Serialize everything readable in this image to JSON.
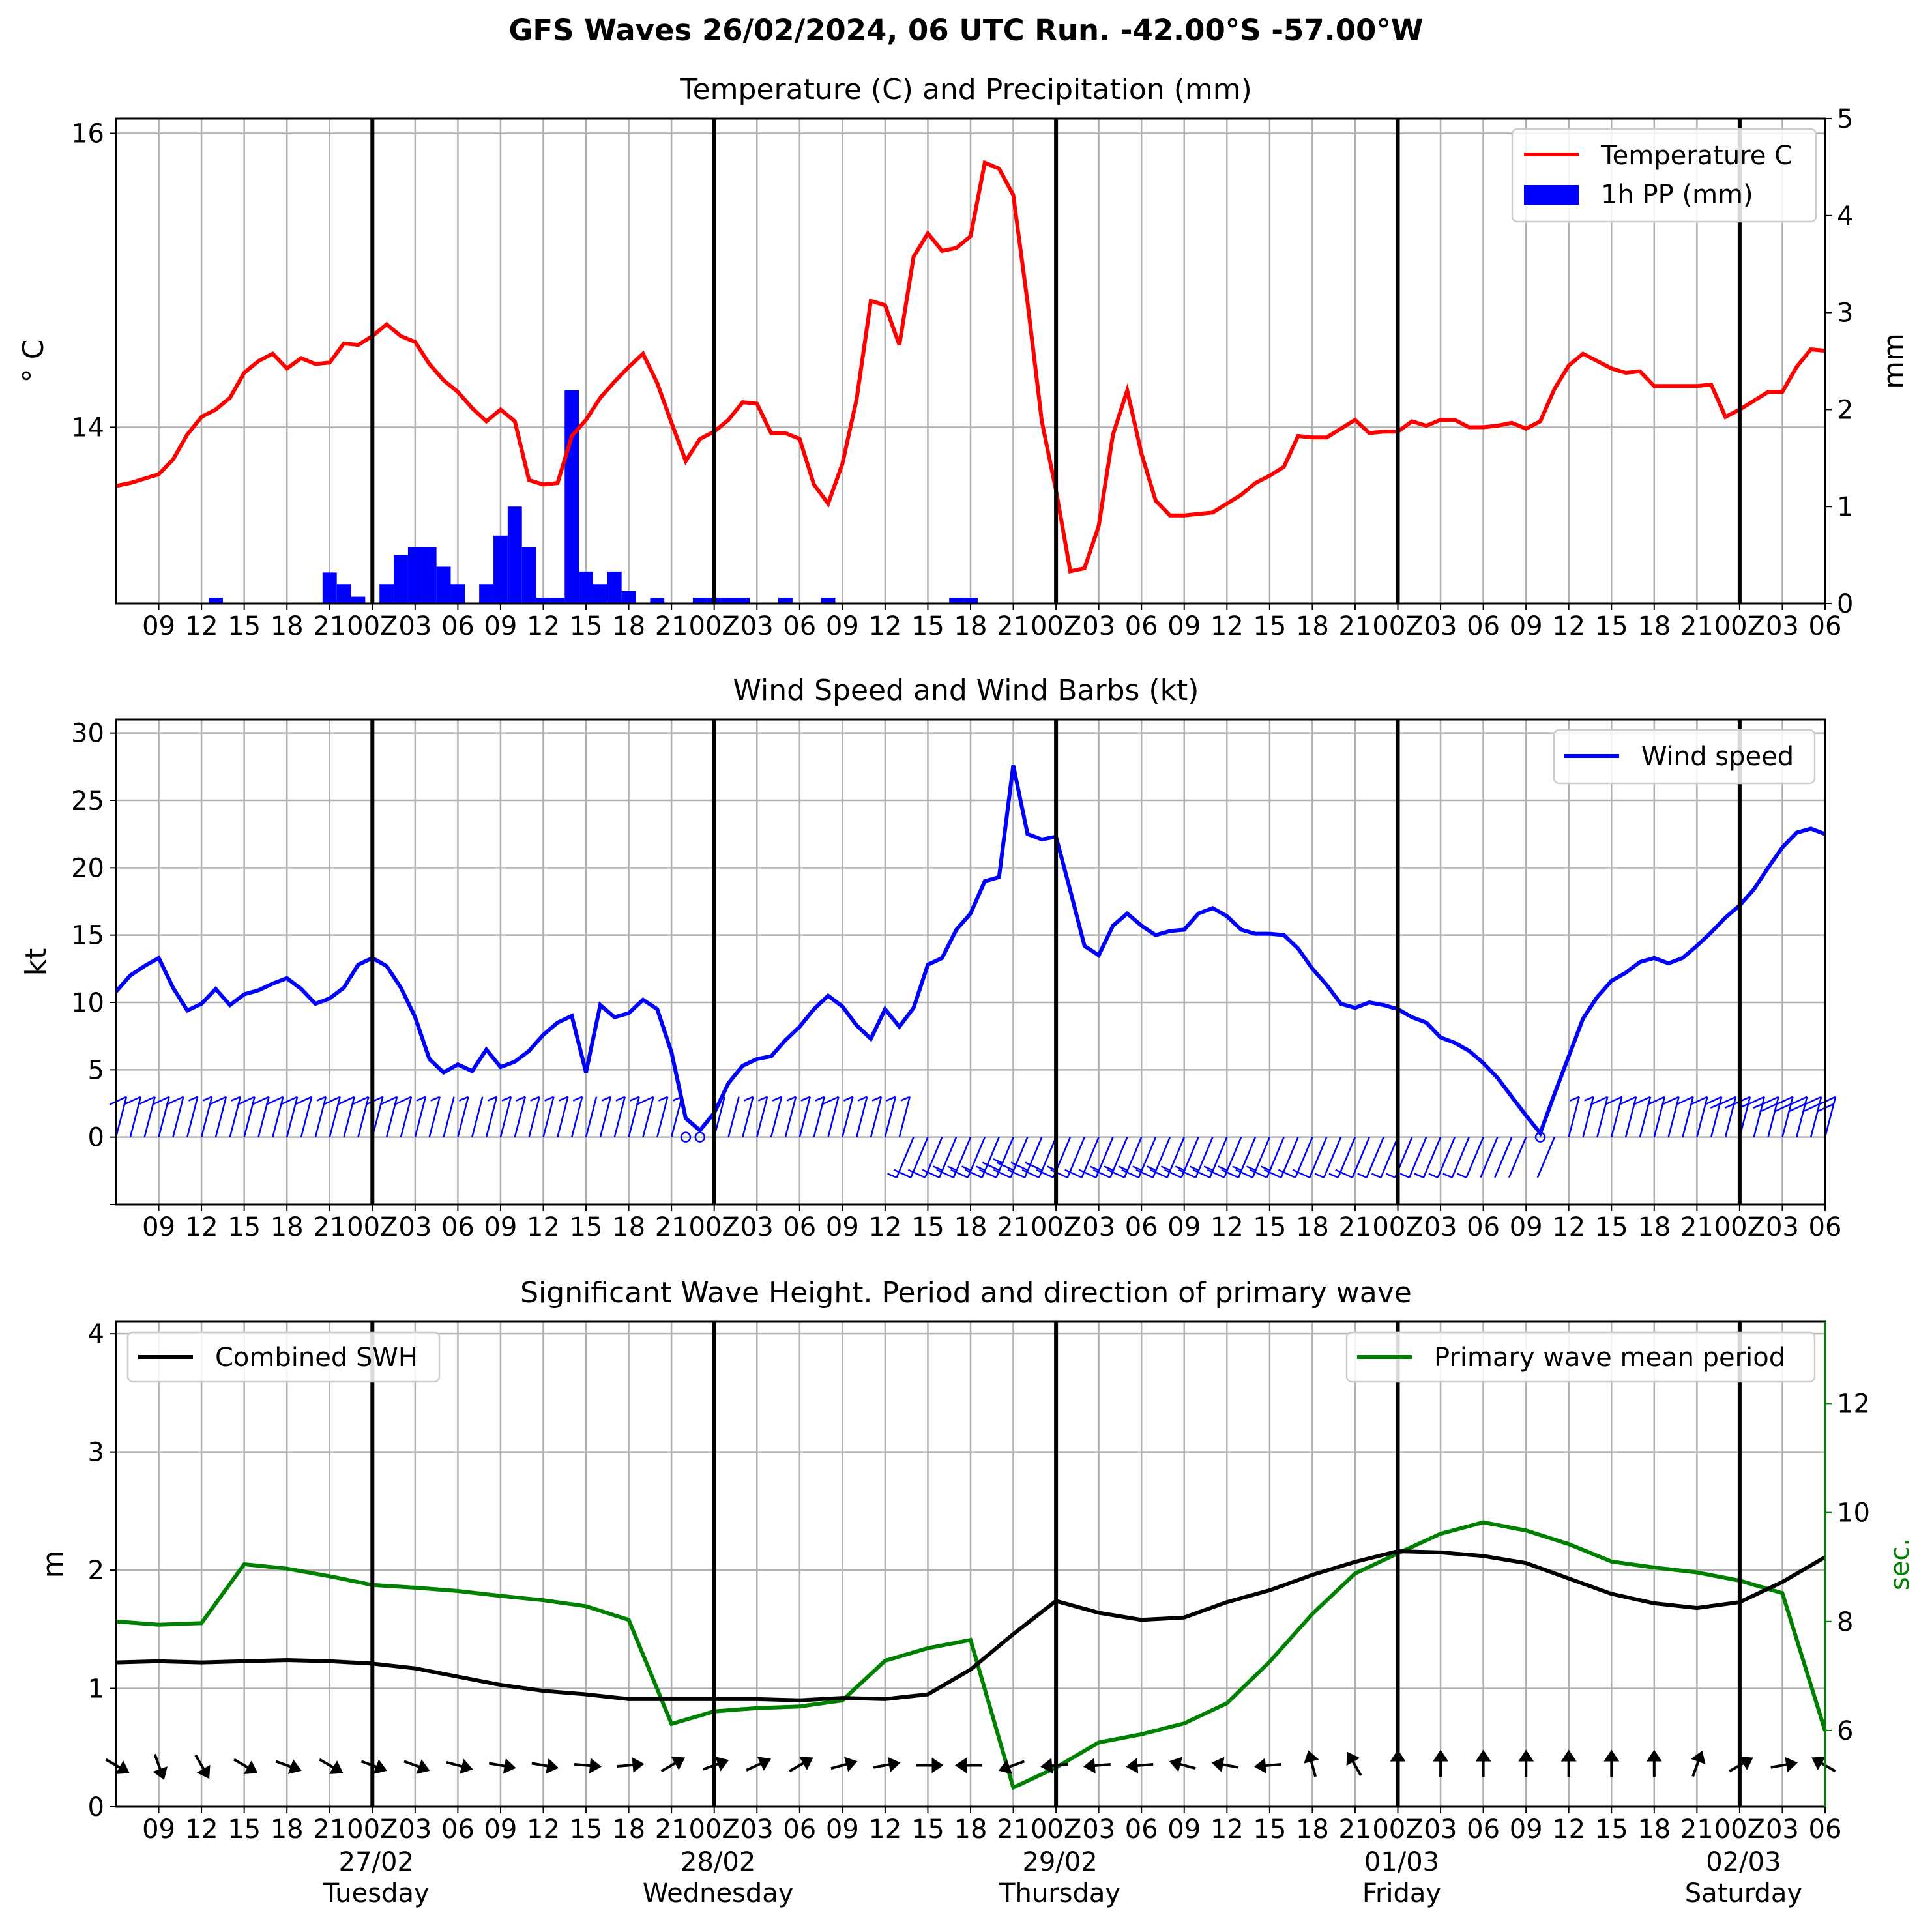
{
  "suptitle": "GFS Waves 26/02/2024, 06 UTC Run. -42.00°S -57.00°W",
  "x_axis": {
    "note_hours_since_run_start": "x values are hours after 26/02 06 UTC; ticks every 3 h from 09 to 06",
    "tick_labels_top": [
      "09",
      "12",
      "15",
      "18",
      "21",
      "00Z",
      "03",
      "06",
      "09",
      "12",
      "15",
      "18",
      "21",
      "00Z",
      "03",
      "06",
      "09",
      "12",
      "15",
      "18",
      "21",
      "00Z",
      "03",
      "06",
      "09",
      "12",
      "15",
      "18",
      "21",
      "00Z",
      "03",
      "06",
      "09",
      "12",
      "15",
      "18",
      "21",
      "00Z",
      "03",
      "06"
    ],
    "day_labels": [
      {
        "date": "27/02",
        "day": "Tuesday"
      },
      {
        "date": "28/02",
        "day": "Wednesday"
      },
      {
        "date": "29/02",
        "day": "Thursday"
      },
      {
        "date": "01/03",
        "day": "Friday"
      },
      {
        "date": "02/03",
        "day": "Saturday"
      }
    ]
  },
  "chart_data": [
    {
      "type": "line",
      "title": "Temperature (C) and Precipitation (mm)",
      "ylabel": "$^\\circ$C",
      "ylabel_display": "° C",
      "y2label": "mm",
      "ylim": [
        12.8,
        16.1
      ],
      "y2lim": [
        0,
        5
      ],
      "yticks": [
        "14",
        "16"
      ],
      "y2ticks": [
        "0",
        "1",
        "2",
        "3",
        "4",
        "5"
      ],
      "legend": {
        "position": "top-right",
        "entries": [
          "Temperature C",
          "1h PP (mm)"
        ]
      },
      "colors": {
        "temperature": "#ff0000",
        "precip": "#0000ff"
      },
      "series": [
        {
          "name": "Temperature C",
          "x": [
            0,
            1,
            2,
            3,
            4,
            5,
            6,
            7,
            8,
            9,
            10,
            11,
            12,
            13,
            14,
            15,
            16,
            17,
            18,
            19,
            20,
            21,
            22,
            23,
            24,
            25,
            26,
            27,
            28,
            29,
            30,
            31,
            32,
            33,
            34,
            35,
            36,
            37,
            38,
            39,
            40,
            41,
            42,
            43,
            44,
            45,
            46,
            47,
            48,
            49,
            50,
            51,
            52,
            53,
            54,
            55,
            56,
            57,
            58,
            59,
            60,
            61,
            62,
            63,
            64,
            65,
            66,
            67,
            68,
            69,
            70,
            71,
            72,
            73,
            74,
            75,
            76,
            77,
            78,
            79,
            80,
            81,
            82,
            83,
            84,
            85,
            86,
            87,
            88,
            89,
            90,
            91,
            92,
            93,
            94,
            95,
            96,
            97,
            98,
            99,
            100,
            101,
            102,
            103,
            104,
            105,
            106,
            107,
            108,
            109,
            110,
            111,
            112,
            113,
            114,
            115,
            116,
            117,
            118,
            119,
            120
          ],
          "values": [
            13.6,
            13.62,
            13.65,
            13.68,
            13.78,
            13.95,
            14.07,
            14.12,
            14.2,
            14.37,
            14.45,
            14.5,
            14.4,
            14.47,
            14.43,
            14.44,
            14.57,
            14.56,
            14.62,
            14.7,
            14.62,
            14.58,
            14.43,
            14.32,
            14.24,
            14.13,
            14.04,
            14.12,
            14.04,
            13.64,
            13.61,
            13.62,
            13.94,
            14.05,
            14.2,
            14.31,
            14.41,
            14.5,
            14.3,
            14.03,
            13.77,
            13.92,
            13.97,
            14.05,
            14.17,
            14.16,
            13.96,
            13.96,
            13.92,
            13.61,
            13.48,
            13.75,
            14.19,
            14.86,
            14.83,
            14.56,
            15.16,
            15.32,
            15.2,
            15.22,
            15.3,
            15.8,
            15.76,
            15.58,
            14.85,
            14.04,
            13.57,
            13.02,
            13.04,
            13.33,
            13.95,
            14.25,
            13.82,
            13.5,
            13.4,
            13.4,
            13.41,
            13.42,
            13.48,
            13.54,
            13.62,
            13.67,
            13.73,
            13.94,
            13.93,
            13.93,
            13.99,
            14.05,
            13.96,
            13.97,
            13.97,
            14.04,
            14.01,
            14.05,
            14.05,
            14.0,
            14.0,
            14.01,
            14.03,
            13.99,
            14.04,
            14.26,
            14.42,
            14.5,
            14.45,
            14.4,
            14.37,
            14.38,
            14.28,
            14.28,
            14.28,
            14.28,
            14.29,
            14.07,
            14.12,
            14.18,
            14.24,
            14.24,
            14.41,
            14.53,
            14.52
          ]
        },
        {
          "name": "1h PP (mm)",
          "x": [
            7,
            15,
            16,
            17,
            19,
            20,
            21,
            22,
            23,
            24,
            26,
            27,
            28,
            29,
            30,
            31,
            32,
            33,
            34,
            35,
            36,
            37,
            38,
            39,
            41,
            42,
            43,
            44,
            47,
            50,
            59,
            60
          ],
          "values": [
            0.06,
            0.32,
            0.2,
            0.07,
            0.2,
            0.5,
            0.58,
            0.58,
            0.38,
            0.2,
            0.2,
            0.7,
            1.0,
            0.58,
            0.06,
            0.06,
            2.2,
            0.33,
            0.2,
            0.33,
            0.13,
            0.0,
            0.06,
            0.0,
            0.06,
            0.06,
            0.06,
            0.06,
            0.06,
            0.06,
            0.06,
            0.06
          ]
        }
      ]
    },
    {
      "type": "line",
      "title": "Wind Speed and Wind Barbs (kt)",
      "ylabel": "kt",
      "ylim": [
        -5,
        31
      ],
      "yticks": [
        "0",
        "5",
        "10",
        "15",
        "20",
        "25",
        "30"
      ],
      "legend": {
        "position": "top-right",
        "entries": [
          "Wind speed"
        ]
      },
      "colors": {
        "wind": "#0000ff"
      },
      "series": [
        {
          "name": "Wind speed",
          "x": [
            0,
            1,
            2,
            3,
            4,
            5,
            6,
            7,
            8,
            9,
            10,
            11,
            12,
            13,
            14,
            15,
            16,
            17,
            18,
            19,
            20,
            21,
            22,
            23,
            24,
            25,
            26,
            27,
            28,
            29,
            30,
            31,
            32,
            33,
            34,
            35,
            36,
            37,
            38,
            39,
            40,
            41,
            42,
            43,
            44,
            45,
            46,
            47,
            48,
            49,
            50,
            51,
            52,
            53,
            54,
            55,
            56,
            57,
            58,
            59,
            60,
            61,
            62,
            63,
            64,
            65,
            66,
            67,
            68,
            69,
            70,
            71,
            72,
            73,
            74,
            75,
            76,
            77,
            78,
            79,
            80,
            81,
            82,
            83,
            84,
            85,
            86,
            87,
            88,
            89,
            90,
            91,
            92,
            93,
            94,
            95,
            96,
            97,
            98,
            99,
            100,
            101,
            102,
            103,
            104,
            105,
            106,
            107,
            108,
            109,
            110,
            111,
            112,
            113,
            114,
            115,
            116,
            117,
            118,
            119,
            120
          ],
          "values": [
            10.8,
            12.0,
            12.7,
            13.3,
            11.1,
            9.4,
            9.9,
            11.0,
            9.8,
            10.6,
            10.9,
            11.4,
            11.8,
            11.0,
            9.9,
            10.3,
            11.1,
            12.8,
            13.3,
            12.7,
            11.1,
            8.9,
            5.8,
            4.8,
            5.4,
            4.9,
            6.5,
            5.2,
            5.6,
            6.4,
            7.6,
            8.5,
            9.0,
            4.8,
            9.8,
            8.9,
            9.2,
            10.2,
            9.5,
            6.3,
            1.4,
            0.5,
            1.8,
            4.0,
            5.3,
            5.8,
            6.0,
            7.2,
            8.2,
            9.5,
            10.5,
            9.7,
            8.3,
            7.3,
            9.5,
            8.2,
            9.6,
            12.8,
            13.3,
            15.4,
            16.6,
            19.0,
            19.3,
            27.6,
            22.5,
            22.1,
            22.3,
            18.3,
            14.2,
            13.5,
            15.7,
            16.6,
            15.7,
            15.0,
            15.3,
            15.4,
            16.6,
            17.0,
            16.4,
            15.4,
            15.1,
            15.1,
            15.0,
            14.0,
            12.5,
            11.3,
            9.9,
            9.6,
            10.0,
            9.8,
            9.5,
            8.9,
            8.5,
            7.4,
            7.0,
            6.4,
            5.5,
            4.4,
            3.0,
            1.6,
            0.3,
            3.2,
            6.0,
            8.8,
            10.4,
            11.6,
            12.2,
            13.0,
            13.3,
            12.9,
            13.3,
            14.2,
            15.2,
            16.3,
            17.2,
            18.4,
            20.0,
            21.5,
            22.6,
            22.9,
            22.5
          ]
        }
      ]
    },
    {
      "type": "line",
      "title": "Significant Wave Height. Period and direction of primary wave",
      "ylabel": "m",
      "y2label": "sec.",
      "ylim": [
        0,
        4.1
      ],
      "y2lim": [
        4.6,
        13.5
      ],
      "yticks": [
        "0",
        "1",
        "2",
        "3",
        "4"
      ],
      "y2ticks": [
        "6",
        "8",
        "10",
        "12"
      ],
      "legend_left": {
        "position": "top-left",
        "entries": [
          "Combined SWH"
        ]
      },
      "legend_right": {
        "position": "top-right",
        "entries": [
          "Primary wave mean period"
        ]
      },
      "colors": {
        "swh": "#000000",
        "period": "#008000"
      },
      "series": [
        {
          "name": "Combined SWH",
          "x": [
            0,
            3,
            6,
            9,
            12,
            15,
            18,
            21,
            24,
            27,
            30,
            33,
            36,
            39,
            42,
            45,
            48,
            51,
            54,
            57,
            60,
            63,
            66,
            69,
            72,
            75,
            78,
            81,
            84,
            87,
            90,
            93,
            96,
            99,
            102,
            105,
            108,
            111,
            114,
            117,
            120
          ],
          "values": [
            1.22,
            1.23,
            1.22,
            1.23,
            1.24,
            1.23,
            1.21,
            1.17,
            1.1,
            1.03,
            0.98,
            0.95,
            0.91,
            0.91,
            0.91,
            0.91,
            0.9,
            0.92,
            0.91,
            0.95,
            1.16,
            1.46,
            1.74,
            1.64,
            1.58,
            1.6,
            1.73,
            1.83,
            1.96,
            2.07,
            2.16,
            2.15,
            2.12,
            2.06,
            1.93,
            1.8,
            1.72,
            1.68,
            1.73,
            1.9,
            2.11
          ]
        },
        {
          "name": "Primary wave mean period",
          "x": [
            0,
            3,
            6,
            9,
            12,
            15,
            18,
            21,
            24,
            27,
            30,
            33,
            36,
            39,
            42,
            45,
            48,
            51,
            54,
            57,
            60,
            63,
            66,
            69,
            72,
            75,
            78,
            81,
            84,
            87,
            90,
            93,
            96,
            99,
            102,
            105,
            108,
            111,
            114,
            117,
            120
          ],
          "values": [
            8.0,
            7.94,
            7.97,
            9.05,
            8.97,
            8.83,
            8.67,
            8.62,
            8.56,
            8.47,
            8.39,
            8.28,
            8.03,
            6.12,
            6.35,
            6.41,
            6.44,
            6.55,
            7.28,
            7.51,
            7.66,
            4.95,
            5.32,
            5.78,
            5.93,
            6.13,
            6.5,
            7.26,
            8.14,
            8.88,
            9.25,
            9.61,
            9.82,
            9.67,
            9.42,
            9.1,
            8.99,
            8.9,
            8.75,
            8.52,
            5.99
          ]
        }
      ],
      "wave_direction_arrows_deg": [
        120,
        160,
        150,
        120,
        110,
        120,
        110,
        110,
        105,
        100,
        100,
        95,
        85,
        60,
        70,
        65,
        60,
        75,
        80,
        90,
        270,
        250,
        265,
        265,
        265,
        285,
        280,
        265,
        345,
        330,
        0,
        360,
        0,
        0,
        0,
        0,
        0,
        20,
        60,
        80,
        300
      ]
    }
  ]
}
